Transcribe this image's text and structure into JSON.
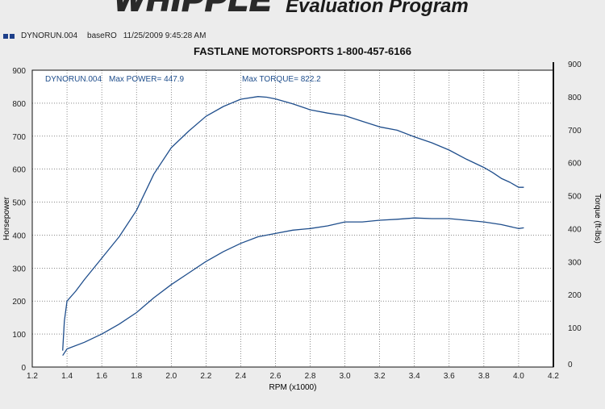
{
  "banner": {
    "logo_fragment": "WHIPPLE",
    "program_title": "Evaluation Program"
  },
  "header": {
    "run_file": "DYNORUN.004",
    "run_name": "baseRO",
    "timestamp": "11/25/2009 9:45:28 AM"
  },
  "colors": {
    "curve": "#1f4e8c",
    "frame": "#111111",
    "grid": "#444444",
    "annotation": "#1f4e8c",
    "background": "#ffffff"
  },
  "chart_data": {
    "type": "line",
    "title": "FASTLANE MOTORSPORTS 1-800-457-6166",
    "annotation": {
      "run": "DYNORUN.004",
      "max_power_label": "Max POWER=",
      "max_power": "447.9",
      "max_torque_label": "Max TORQUE=",
      "max_torque": "822.2"
    },
    "xlabel": "RPM (x1000)",
    "ylabel_left": "Horsepower",
    "ylabel_right": "Torque (ft-lbs)",
    "xlim": [
      1.2,
      4.2
    ],
    "ylim_left": [
      0,
      900
    ],
    "ylim_right": [
      0,
      900
    ],
    "x_ticks": [
      "1.2",
      "1.4",
      "1.6",
      "1.8",
      "2.0",
      "2.2",
      "2.4",
      "2.6",
      "2.8",
      "3.0",
      "3.2",
      "3.4",
      "3.6",
      "3.8",
      "4.0",
      "4.2"
    ],
    "y_ticks_left": [
      "0",
      "100",
      "200",
      "300",
      "400",
      "500",
      "600",
      "700",
      "800",
      "900"
    ],
    "y_ticks_right": [
      "0",
      "100",
      "200",
      "300",
      "400",
      "500",
      "600",
      "700",
      "800",
      "900"
    ],
    "grid": true,
    "series": [
      {
        "axis": "right",
        "x": [
          1.375,
          1.385,
          1.4,
          1.45,
          1.5,
          1.6,
          1.7,
          1.8,
          1.9,
          2.0,
          2.1,
          2.2,
          2.3,
          2.4,
          2.5,
          2.55,
          2.6,
          2.7,
          2.8,
          2.9,
          3.0,
          3.1,
          3.2,
          3.3,
          3.4,
          3.5,
          3.6,
          3.7,
          3.8,
          3.85,
          3.9,
          3.95,
          4.0,
          4.03
        ],
        "values": [
          50,
          140,
          200,
          230,
          265,
          330,
          395,
          475,
          585,
          665,
          715,
          760,
          790,
          812,
          820,
          818,
          813,
          798,
          780,
          770,
          762,
          745,
          728,
          718,
          698,
          680,
          658,
          630,
          605,
          590,
          572,
          560,
          545,
          545
        ]
      },
      {
        "axis": "left",
        "x": [
          1.375,
          1.4,
          1.5,
          1.6,
          1.7,
          1.8,
          1.9,
          2.0,
          2.1,
          2.2,
          2.3,
          2.4,
          2.5,
          2.6,
          2.7,
          2.8,
          2.9,
          3.0,
          3.1,
          3.2,
          3.3,
          3.4,
          3.5,
          3.6,
          3.7,
          3.8,
          3.9,
          4.0,
          4.03
        ],
        "values": [
          35,
          55,
          75,
          100,
          130,
          165,
          210,
          250,
          285,
          320,
          350,
          375,
          395,
          405,
          415,
          420,
          428,
          440,
          440,
          445,
          448,
          452,
          450,
          450,
          445,
          440,
          432,
          420,
          422
        ]
      }
    ]
  }
}
